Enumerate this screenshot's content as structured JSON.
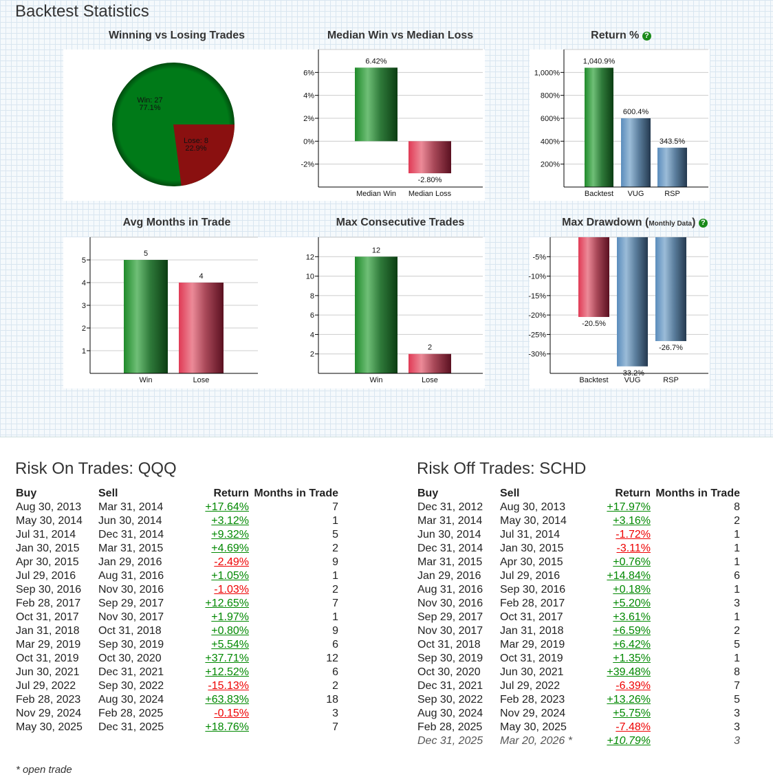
{
  "header": {
    "title": "Backtest Statistics"
  },
  "colors": {
    "green": "#0a7a1a",
    "red": "#8a1010",
    "bar_green": "#2a9a3a",
    "bar_red": "#d84060",
    "bar_blue": "#6a94bb",
    "positive": "#008800",
    "negative": "#ee0000"
  },
  "chart_data": [
    {
      "id": "pie",
      "type": "pie",
      "title": "Winning vs Losing Trades",
      "slices": [
        {
          "name": "Win",
          "count": 27,
          "pct": "77.1%",
          "label": "Win: 27",
          "value": 77.1
        },
        {
          "name": "Lose",
          "count": 8,
          "pct": "22.9%",
          "label": "Lose: 8",
          "value": 22.9
        }
      ]
    },
    {
      "id": "median",
      "type": "bar",
      "title": "Median Win vs Median Loss",
      "categories": [
        "Median Win",
        "Median Loss"
      ],
      "values": [
        6.42,
        -2.8
      ],
      "labels": [
        "6.42%",
        "-2.80%"
      ],
      "ylim": [
        -4,
        8
      ],
      "ticks": [
        -2,
        0,
        2,
        4,
        6
      ],
      "tick_labels": [
        "-2%",
        "0%",
        "2%",
        "4%",
        "6%"
      ]
    },
    {
      "id": "return",
      "type": "bar",
      "title": "Return %",
      "categories": [
        "Backtest",
        "VUG",
        "RSP"
      ],
      "values": [
        1040.9,
        600.4,
        343.5
      ],
      "labels": [
        "1,040.9%",
        "600.4%",
        "343.5%"
      ],
      "ylim": [
        0,
        1200
      ],
      "ticks": [
        200,
        400,
        600,
        800,
        1000
      ],
      "tick_labels": [
        "200%",
        "400%",
        "600%",
        "800%",
        "1,000%"
      ]
    },
    {
      "id": "months",
      "type": "bar",
      "title": "Avg Months in Trade",
      "categories": [
        "Win",
        "Lose"
      ],
      "values": [
        5,
        4
      ],
      "labels": [
        "5",
        "4"
      ],
      "ylim": [
        0,
        6
      ],
      "ticks": [
        1,
        2,
        3,
        4,
        5
      ],
      "tick_labels": [
        "1",
        "2",
        "3",
        "4",
        "5"
      ]
    },
    {
      "id": "consec",
      "type": "bar",
      "title": "Max Consecutive Trades",
      "categories": [
        "Win",
        "Lose"
      ],
      "values": [
        12,
        2
      ],
      "labels": [
        "12",
        "2"
      ],
      "ylim": [
        0,
        14
      ],
      "ticks": [
        2,
        4,
        6,
        8,
        10,
        12
      ],
      "tick_labels": [
        "2",
        "4",
        "6",
        "8",
        "10",
        "12"
      ]
    },
    {
      "id": "drawdown",
      "type": "bar",
      "title": "Max Drawdown",
      "title_note": "Monthly Data",
      "categories": [
        "Backtest",
        "VUG",
        "RSP"
      ],
      "values": [
        -20.5,
        -33.2,
        -26.7
      ],
      "labels": [
        "-20.5%",
        "-33.2%",
        "-26.7%"
      ],
      "ylim": [
        -35,
        0
      ],
      "ticks": [
        -30,
        -25,
        -20,
        -15,
        -10,
        -5
      ],
      "tick_labels": [
        "-30%",
        "-25%",
        "-20%",
        "-15%",
        "-10%",
        "-5%"
      ]
    }
  ],
  "risk_on": {
    "title": "Risk On Trades: QQQ",
    "columns": [
      "Buy",
      "Sell",
      "Return",
      "Months in Trade"
    ],
    "rows": [
      [
        "Aug 30, 2013",
        "Mar 31, 2014",
        "+17.64%",
        "7"
      ],
      [
        "May 30, 2014",
        "Jun 30, 2014",
        "+3.12%",
        "1"
      ],
      [
        "Jul 31, 2014",
        "Dec 31, 2014",
        "+9.32%",
        "5"
      ],
      [
        "Jan 30, 2015",
        "Mar 31, 2015",
        "+4.69%",
        "2"
      ],
      [
        "Apr 30, 2015",
        "Jan 29, 2016",
        "-2.49%",
        "9"
      ],
      [
        "Jul 29, 2016",
        "Aug 31, 2016",
        "+1.05%",
        "1"
      ],
      [
        "Sep 30, 2016",
        "Nov 30, 2016",
        "-1.03%",
        "2"
      ],
      [
        "Feb 28, 2017",
        "Sep 29, 2017",
        "+12.65%",
        "7"
      ],
      [
        "Oct 31, 2017",
        "Nov 30, 2017",
        "+1.97%",
        "1"
      ],
      [
        "Jan 31, 2018",
        "Oct 31, 2018",
        "+0.80%",
        "9"
      ],
      [
        "Mar 29, 2019",
        "Sep 30, 2019",
        "+5.54%",
        "6"
      ],
      [
        "Oct 31, 2019",
        "Oct 30, 2020",
        "+37.71%",
        "12"
      ],
      [
        "Jun 30, 2021",
        "Dec 31, 2021",
        "+12.52%",
        "6"
      ],
      [
        "Jul 29, 2022",
        "Sep 30, 2022",
        "-15.13%",
        "2"
      ],
      [
        "Feb 28, 2023",
        "Aug 30, 2024",
        "+63.83%",
        "18"
      ],
      [
        "Nov 29, 2024",
        "Feb 28, 2025",
        "-0.15%",
        "3"
      ],
      [
        "May 30, 2025",
        "Dec 31, 2025",
        "+18.76%",
        "7"
      ]
    ]
  },
  "risk_off": {
    "title": "Risk Off Trades: SCHD",
    "columns": [
      "Buy",
      "Sell",
      "Return",
      "Months in Trade"
    ],
    "rows": [
      [
        "Dec 31, 2012",
        "Aug 30, 2013",
        "+17.97%",
        "8"
      ],
      [
        "Mar 31, 2014",
        "May 30, 2014",
        "+3.16%",
        "2"
      ],
      [
        "Jun 30, 2014",
        "Jul 31, 2014",
        "-1.72%",
        "1"
      ],
      [
        "Dec 31, 2014",
        "Jan 30, 2015",
        "-3.11%",
        "1"
      ],
      [
        "Mar 31, 2015",
        "Apr 30, 2015",
        "+0.76%",
        "1"
      ],
      [
        "Jan 29, 2016",
        "Jul 29, 2016",
        "+14.84%",
        "6"
      ],
      [
        "Aug 31, 2016",
        "Sep 30, 2016",
        "+0.18%",
        "1"
      ],
      [
        "Nov 30, 2016",
        "Feb 28, 2017",
        "+5.20%",
        "3"
      ],
      [
        "Sep 29, 2017",
        "Oct 31, 2017",
        "+3.61%",
        "1"
      ],
      [
        "Nov 30, 2017",
        "Jan 31, 2018",
        "+6.59%",
        "2"
      ],
      [
        "Oct 31, 2018",
        "Mar 29, 2019",
        "+6.42%",
        "5"
      ],
      [
        "Sep 30, 2019",
        "Oct 31, 2019",
        "+1.35%",
        "1"
      ],
      [
        "Oct 30, 2020",
        "Jun 30, 2021",
        "+39.48%",
        "8"
      ],
      [
        "Dec 31, 2021",
        "Jul 29, 2022",
        "-6.39%",
        "7"
      ],
      [
        "Sep 30, 2022",
        "Feb 28, 2023",
        "+13.26%",
        "5"
      ],
      [
        "Aug 30, 2024",
        "Nov 29, 2024",
        "+5.75%",
        "3"
      ],
      [
        "Feb 28, 2025",
        "May 30, 2025",
        "-7.48%",
        "3"
      ],
      [
        "Dec 31, 2025",
        "Mar 20, 2026 *",
        "+10.79%",
        "3"
      ]
    ],
    "open_row_index": 17
  },
  "footer": {
    "note": "* open trade"
  }
}
